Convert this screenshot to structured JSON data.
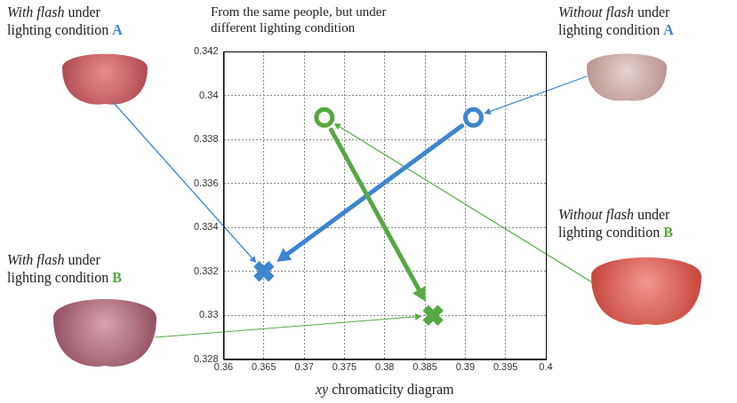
{
  "chart_data": {
    "type": "scatter",
    "title": "From the same people, but under different lighting condition",
    "x_label": "xy chromaticity diagram",
    "xlim": [
      0.36,
      0.4
    ],
    "xticks": [
      0.36,
      0.365,
      0.37,
      0.375,
      0.38,
      0.385,
      0.39,
      0.395,
      0.4
    ],
    "ylim": [
      0.328,
      0.342
    ],
    "yticks": [
      0.328,
      0.33,
      0.332,
      0.334,
      0.336,
      0.338,
      0.34,
      0.342
    ],
    "grid": true,
    "series": [
      {
        "name": "Without flash under lighting condition A",
        "color": "#3d85d0",
        "marker": "circle",
        "x": [
          0.391
        ],
        "y": [
          0.339
        ]
      },
      {
        "name": "With flash under lighting condition A",
        "color": "#3d85d0",
        "marker": "x",
        "x": [
          0.365
        ],
        "y": [
          0.332
        ]
      },
      {
        "name": "Without flash under lighting condition B",
        "color": "#55a843",
        "marker": "circle",
        "x": [
          0.3725
        ],
        "y": [
          0.339
        ]
      },
      {
        "name": "With flash under lighting condition B",
        "color": "#55a843",
        "marker": "x",
        "x": [
          0.386
        ],
        "y": [
          0.33
        ]
      }
    ]
  }
}
